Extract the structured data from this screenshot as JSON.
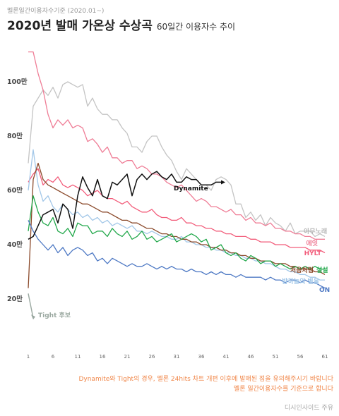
{
  "source_note": "멜론일간이용자수기준 (2020.01~)",
  "title_main": "2020년 발매 가온상 수상곡",
  "title_sub": "60일간 이용자수 추이",
  "footnote_line1": "Dynamite와 Tight의 경우, 멜론 24hits 차트 개편 이후에 발매된 점을 유의해주시기 바랍니다",
  "footnote_line2": "멜론 일간이용자수를 기준으로 합니다",
  "credit": "디시인사이드 주유",
  "chart_data": {
    "type": "line",
    "title": "2020년 발매 가온상 수상곡",
    "subtitle": "60일간 이용자수 추이",
    "xlabel": "",
    "ylabel": "",
    "x_ticks": [
      1,
      6,
      11,
      16,
      21,
      26,
      31,
      36,
      41,
      46,
      51,
      56,
      61
    ],
    "y_ticks": [
      {
        "value": 20,
        "label": "20만"
      },
      {
        "value": 40,
        "label": "40만"
      },
      {
        "value": 60,
        "label": "60만"
      },
      {
        "value": 80,
        "label": "80만"
      },
      {
        "value": 100,
        "label": "100만"
      }
    ],
    "xlim": [
      1,
      61
    ],
    "ylim": [
      0,
      115
    ],
    "grid": false,
    "legend": "inline labels at line ends",
    "series": [
      {
        "name": "아무노래",
        "color": "#c4c4c4",
        "x_start": 1,
        "values": [
          70,
          91,
          94,
          97,
          95,
          98,
          94,
          99,
          100,
          99,
          98,
          99,
          91,
          94,
          90,
          88,
          88,
          86,
          86,
          83,
          81,
          76,
          76,
          74,
          78,
          80,
          80,
          76,
          73,
          71,
          67,
          64,
          68,
          66,
          64,
          62,
          62,
          60,
          64,
          65,
          64,
          62,
          55,
          55,
          50,
          52,
          49,
          51,
          47,
          50,
          48,
          47,
          45,
          48,
          44,
          45,
          45,
          45,
          43,
          44,
          43
        ]
      },
      {
        "name": "에잇",
        "color": "#ef7d96",
        "x_start": 1,
        "values": [
          111,
          111,
          103,
          97,
          88,
          83,
          86,
          84,
          86,
          83,
          84,
          83,
          78,
          79,
          77,
          74,
          76,
          72,
          72,
          70,
          71,
          71,
          68,
          69,
          68,
          66,
          66,
          65,
          63,
          62,
          61,
          62,
          60,
          58,
          56,
          57,
          56,
          54,
          54,
          53,
          52,
          53,
          51,
          51,
          49,
          50,
          48,
          48,
          47,
          48,
          46,
          46,
          45,
          45,
          44,
          44,
          43,
          43,
          42,
          42,
          42
        ]
      },
      {
        "name": "HYLT",
        "color": "#f25c7a",
        "x_start": 1,
        "values": [
          63,
          66,
          68,
          62,
          64,
          63,
          65,
          62,
          61,
          62,
          61,
          60,
          58,
          59,
          60,
          58,
          57,
          57,
          56,
          55,
          56,
          54,
          53,
          52,
          52,
          53,
          51,
          50,
          50,
          49,
          49,
          50,
          48,
          48,
          47,
          47,
          46,
          46,
          45,
          45,
          44,
          44,
          43,
          43,
          43,
          42,
          42,
          41,
          41,
          41,
          40,
          40,
          40,
          39,
          39,
          39,
          39,
          38,
          38,
          38,
          37
        ]
      },
      {
        "name": "Dynamite",
        "color": "#111111",
        "x_start": 1,
        "values": [
          42,
          43,
          47,
          51,
          52,
          53,
          48,
          55,
          53,
          46,
          58,
          65,
          61,
          58,
          64,
          58,
          57,
          63,
          62,
          64,
          66,
          58,
          64,
          66,
          64,
          66,
          67,
          65,
          64,
          66,
          63,
          63,
          65,
          64,
          64,
          62,
          62,
          62,
          63,
          63
        ]
      },
      {
        "name": "처음처럼",
        "color": "#8b4a2b",
        "x_start": 1,
        "values": [
          24,
          64,
          70,
          64,
          62,
          61,
          60,
          59,
          58,
          57,
          56,
          55,
          55,
          54,
          53,
          52,
          52,
          51,
          50,
          49,
          49,
          48,
          48,
          47,
          46,
          46,
          45,
          44,
          44,
          43,
          43,
          42,
          42,
          41,
          41,
          40,
          40,
          39,
          39,
          38,
          38,
          37,
          37,
          36,
          36,
          35,
          35,
          34,
          34,
          34,
          33,
          33,
          33,
          32,
          32,
          31,
          31,
          31,
          30,
          30,
          29
        ]
      },
      {
        "name": "설설",
        "color": "#22a84b",
        "x_start": 1,
        "values": [
          45,
          58,
          52,
          48,
          47,
          50,
          45,
          44,
          46,
          43,
          48,
          47,
          47,
          44,
          45,
          45,
          43,
          46,
          44,
          43,
          45,
          42,
          43,
          45,
          42,
          43,
          41,
          42,
          43,
          44,
          41,
          42,
          43,
          44,
          43,
          41,
          42,
          38,
          39,
          40,
          37,
          36,
          37,
          35,
          34,
          36,
          35,
          33,
          34,
          34,
          32,
          33,
          32,
          31,
          32,
          31,
          32,
          31,
          32,
          31,
          31
        ]
      },
      {
        "name": "밤하늘의 별을",
        "color": "#a2c7e8",
        "x_start": 1,
        "values": [
          60,
          75,
          62,
          56,
          58,
          54,
          52,
          55,
          53,
          51,
          52,
          50,
          51,
          49,
          50,
          48,
          49,
          47,
          48,
          47,
          46,
          47,
          45,
          45,
          44,
          45,
          44,
          43,
          43,
          42,
          42,
          43,
          41,
          41,
          40,
          40,
          39,
          39,
          38,
          38,
          37,
          37,
          36,
          36,
          35,
          35,
          34,
          34,
          33,
          33,
          32,
          31,
          31,
          30,
          30,
          29,
          29,
          28,
          28,
          27,
          27
        ]
      },
      {
        "name": "ON",
        "color": "#4e79c4",
        "x_start": 1,
        "values": [
          49,
          45,
          42,
          40,
          38,
          40,
          37,
          39,
          36,
          38,
          39,
          38,
          36,
          37,
          34,
          35,
          33,
          35,
          34,
          33,
          32,
          33,
          32,
          32,
          33,
          32,
          31,
          32,
          31,
          32,
          31,
          31,
          30,
          31,
          30,
          30,
          29,
          30,
          29,
          30,
          29,
          29,
          28,
          29,
          28,
          28,
          28,
          28,
          27,
          28,
          27,
          27,
          26,
          27,
          27,
          26,
          27,
          26,
          26,
          25,
          24
        ]
      },
      {
        "name": "Tight",
        "color": "#9aa8a0",
        "x_start": 1,
        "values": [
          22,
          14
        ]
      }
    ],
    "annotations": [
      {
        "text": "Tight 후보",
        "series": "Tight"
      }
    ],
    "end_labels": {
      "아무노래": "아무노래",
      "에잇": "에잇",
      "HYLT": "HYLT",
      "Dynamite": "Dynamite",
      "처음처럼": "처음처럼",
      "설설": "설설",
      "밤하늘의 별을": "밤하늘의 별을",
      "ON": "ON"
    }
  }
}
